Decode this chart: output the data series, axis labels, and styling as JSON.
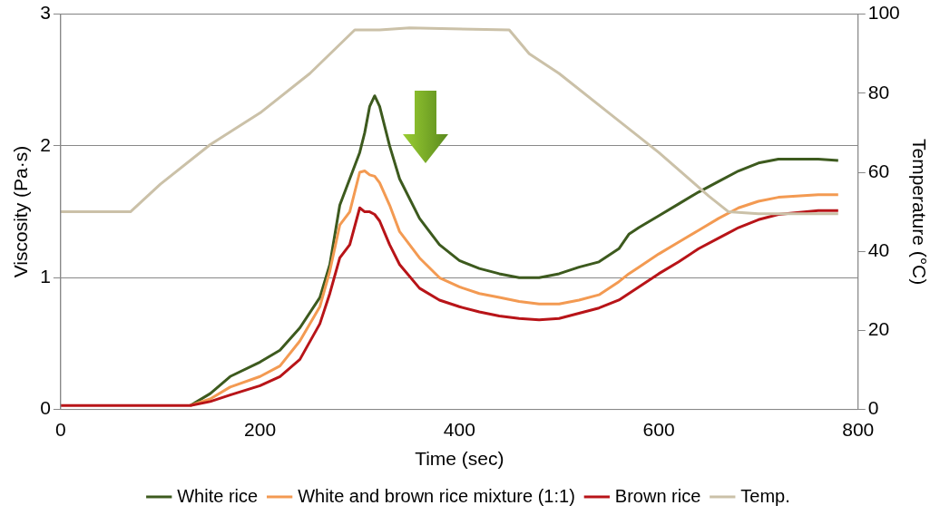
{
  "chart_data": {
    "type": "line",
    "xlabel": "Time (sec)",
    "ylabel": "Viscosity (Pa·s)",
    "y2label": "Temperature (°C)",
    "x": [
      0,
      50,
      100,
      130,
      150,
      170,
      200,
      220,
      240,
      260,
      270,
      280,
      290,
      300,
      305,
      310,
      315,
      320,
      330,
      340,
      360,
      380,
      400,
      420,
      440,
      460,
      480,
      500,
      520,
      540,
      560,
      570,
      580,
      600,
      620,
      640,
      660,
      680,
      700,
      720,
      760,
      780
    ],
    "series": [
      {
        "name": "White rice",
        "color": "#3d5a1e",
        "values": [
          null,
          null,
          null,
          0.03,
          0.12,
          0.25,
          0.36,
          0.45,
          0.62,
          0.85,
          1.1,
          1.55,
          1.75,
          1.95,
          2.1,
          2.3,
          2.38,
          2.3,
          2.0,
          1.75,
          1.45,
          1.25,
          1.13,
          1.07,
          1.03,
          1.0,
          1.0,
          1.03,
          1.08,
          1.12,
          1.22,
          1.33,
          1.38,
          1.47,
          1.56,
          1.65,
          1.73,
          1.81,
          1.87,
          1.9,
          1.9,
          1.89
        ]
      },
      {
        "name": "White and brown rice mixture (1:1)",
        "color": "#f39a52",
        "values": [
          null,
          null,
          null,
          0.03,
          0.08,
          0.17,
          0.25,
          0.33,
          0.52,
          0.78,
          1.05,
          1.4,
          1.5,
          1.8,
          1.81,
          1.78,
          1.77,
          1.72,
          1.55,
          1.35,
          1.15,
          1.0,
          0.93,
          0.88,
          0.85,
          0.82,
          0.8,
          0.8,
          0.83,
          0.87,
          0.97,
          1.03,
          1.08,
          1.18,
          1.27,
          1.36,
          1.45,
          1.53,
          1.58,
          1.61,
          1.63,
          1.63
        ]
      },
      {
        "name": "Brown rice",
        "color": "#b81418",
        "values": [
          0.03,
          0.03,
          0.03,
          0.03,
          0.06,
          0.11,
          0.18,
          0.25,
          0.38,
          0.65,
          0.88,
          1.15,
          1.25,
          1.53,
          1.5,
          1.5,
          1.48,
          1.43,
          1.25,
          1.1,
          0.92,
          0.83,
          0.78,
          0.74,
          0.71,
          0.69,
          0.68,
          0.69,
          0.73,
          0.77,
          0.83,
          0.88,
          0.93,
          1.03,
          1.12,
          1.22,
          1.3,
          1.38,
          1.44,
          1.48,
          1.51,
          1.51
        ]
      },
      {
        "name": "Temp.",
        "color": "#cbc1a8",
        "axis": "y2",
        "x": [
          0,
          70,
          100,
          150,
          200,
          250,
          295,
          320,
          350,
          450,
          470,
          500,
          550,
          600,
          650,
          670,
          700,
          780
        ],
        "values": [
          50,
          50,
          57,
          67,
          75,
          85,
          96,
          96,
          96.5,
          96,
          90,
          85,
          75,
          65,
          54,
          50,
          49.5,
          49.5
        ]
      }
    ],
    "xlim": [
      0,
      800
    ],
    "xticks": [
      0,
      200,
      400,
      600,
      800
    ],
    "ylim": [
      0,
      3
    ],
    "yticks": [
      0,
      1,
      2,
      3
    ],
    "y2lim": [
      0,
      100
    ],
    "y2ticks": [
      0,
      20,
      40,
      60,
      80,
      100
    ],
    "grid": "y",
    "legend": "bottom",
    "marker": "none",
    "line_style": "solid"
  }
}
